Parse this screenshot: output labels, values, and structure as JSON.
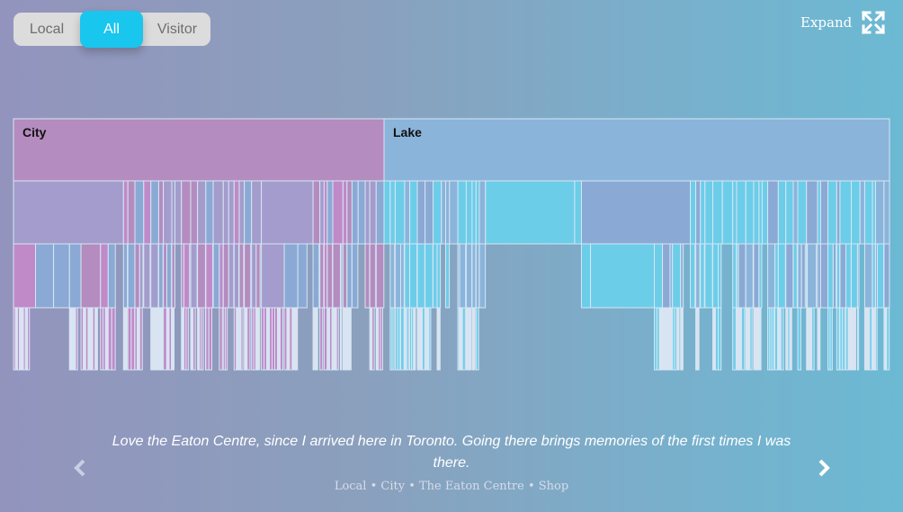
{
  "toggle": {
    "options": [
      "Local",
      "All",
      "Visitor"
    ],
    "selected": "All"
  },
  "expand": {
    "label": "Expand",
    "icon": "expand-arrows-icon"
  },
  "quote": {
    "text": "Love the Eaton Centre, since I arrived here in Toronto. Going there brings memories of the first times I was there.",
    "meta": "Local • City • The Eaton Centre • Shop"
  },
  "nav": {
    "prev_icon": "chevron-left-icon",
    "next_icon": "chevron-right-icon"
  },
  "colors": {
    "city": "#b48cbf",
    "lake": "#8ab4da",
    "cyan": "#6ccde9",
    "lavender": "#a39ccc",
    "pink": "#c08ac8",
    "bluegray": "#8aa9d4",
    "border": "#d6e6f4",
    "accent": "#19c6ee"
  },
  "chart_data": {
    "type": "icicle",
    "title": "",
    "levels": 4,
    "root": [
      {
        "name": "City",
        "share": 0.423
      },
      {
        "name": "Lake",
        "share": 0.577
      }
    ]
  }
}
